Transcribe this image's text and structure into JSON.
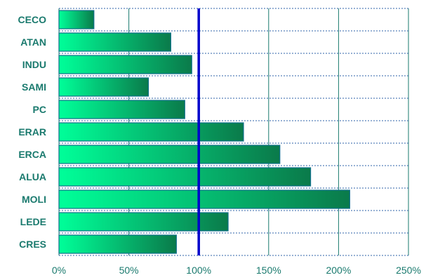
{
  "chart_data": {
    "type": "bar",
    "orientation": "horizontal",
    "categories": [
      "CECO",
      "ATAN",
      "INDU",
      "SAMI",
      "PC",
      "ERAR",
      "ERCA",
      "ALUA",
      "MOLI",
      "LEDE",
      "CRES"
    ],
    "values": [
      25,
      80,
      95,
      64,
      90,
      132,
      158,
      180,
      208,
      121,
      84
    ],
    "xlim": [
      0,
      250
    ],
    "x_ticks": [
      "0%",
      "50%",
      "100%",
      "150%",
      "200%",
      "250%"
    ],
    "x_tick_values": [
      0,
      50,
      100,
      150,
      200,
      250
    ],
    "reference_line": 100,
    "grid": "vertical solid, horizontal dotted",
    "title": "",
    "xlabel": "",
    "ylabel": "",
    "colors": {
      "bar_light": "#00ff99",
      "bar_dark": "#0a7a4a",
      "bar_edge": "#0d6e8a",
      "reference_line": "#0000cc",
      "grid": "#1a7a6e",
      "labels": "#1a7a6e"
    }
  }
}
